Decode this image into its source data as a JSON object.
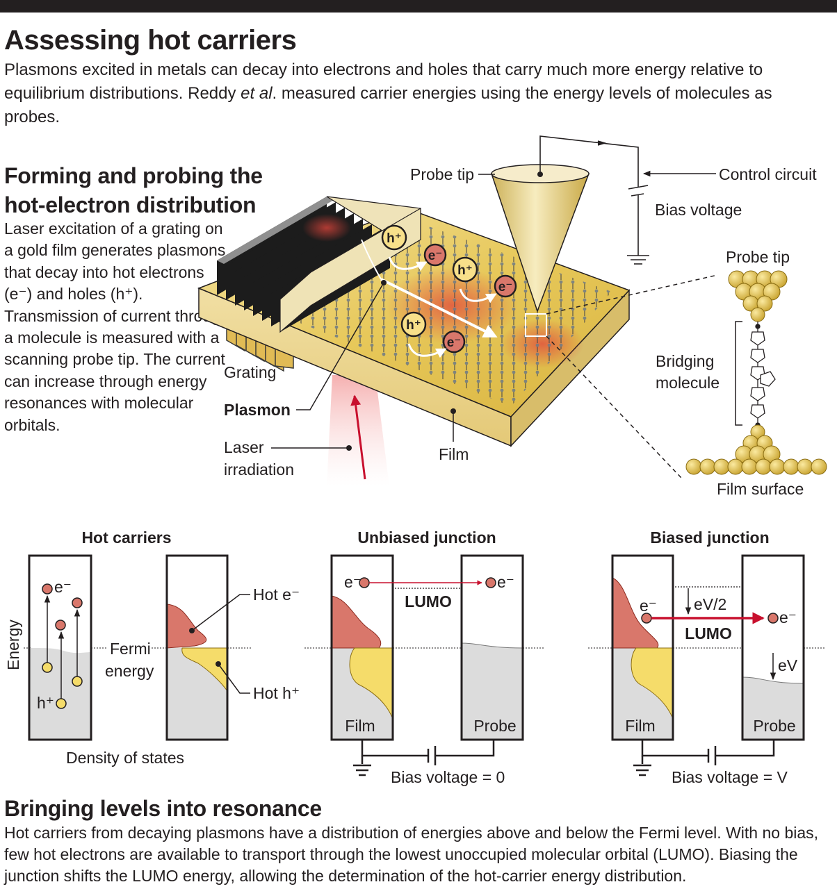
{
  "header": {
    "title": "Assessing hot carriers",
    "intro_part1": "Plasmons excited in metals can decay into electrons and holes that carry much more energy relative to equilibrium distributions. Reddy ",
    "intro_italic": "et al",
    "intro_part2": ". measured carrier energies using the energy levels of molecules as probes."
  },
  "forming": {
    "heading_line1": "Forming and probing the",
    "heading_line2": "hot-electron distribution",
    "body": "Laser excitation of a grating on a gold film generates plasmons that decay into hot electrons (e⁻) and holes (h⁺). Transmission of current through a molecule is measured with a scanning probe tip. The current can increase through energy resonances with molecular orbitals."
  },
  "illustration": {
    "labels": {
      "probe_tip": "Probe tip",
      "control_circuit": "Control circuit",
      "bias_voltage": "Bias voltage",
      "grating": "Grating",
      "plasmon": "Plasmon",
      "laser_line1": "Laser",
      "laser_line2": "irradiation",
      "film": "Film"
    },
    "carriers": {
      "hole": "h⁺",
      "electron": "e⁻"
    }
  },
  "inset": {
    "probe_tip": "Probe tip",
    "bridging_line1": "Bridging",
    "bridging_line2": "molecule",
    "film_surface": "Film surface"
  },
  "panels": {
    "hot_carriers": {
      "title": "Hot carriers",
      "y_axis": "Energy",
      "x_axis": "Density of states",
      "fermi_line1": "Fermi",
      "fermi_line2": "energy",
      "electron": "e⁻",
      "hole": "h⁺",
      "hot_e": "Hot e⁻",
      "hot_h": "Hot h⁺"
    },
    "unbiased": {
      "title": "Unbiased junction",
      "electron": "e⁻",
      "lumo": "LUMO",
      "film": "Film",
      "probe": "Probe",
      "bias": "Bias voltage = 0"
    },
    "biased": {
      "title": "Biased junction",
      "electron": "e⁻",
      "lumo": "LUMO",
      "half_shift": "eV/2",
      "shift": "eV",
      "film": "Film",
      "probe": "Probe",
      "bias": "Bias voltage = V"
    }
  },
  "resonance": {
    "heading": "Bringing levels into resonance",
    "body": "Hot carriers from decaying plasmons have a distribution of energies above and below the Fermi level. With no bias, few hot electrons are available to transport through the lowest unoccupied molecular orbital (LUMO). Biasing the junction shifts the LUMO energy, allowing the determination of the hot-carrier energy distribution."
  },
  "colors": {
    "gold": "#e6c64a",
    "hot_electron_red": "#d9776b",
    "hot_hole_yellow": "#f5dc6a",
    "equilibrium_gray": "#dcdcdc",
    "arrow_red": "#c8102e",
    "ink": "#231f20"
  }
}
